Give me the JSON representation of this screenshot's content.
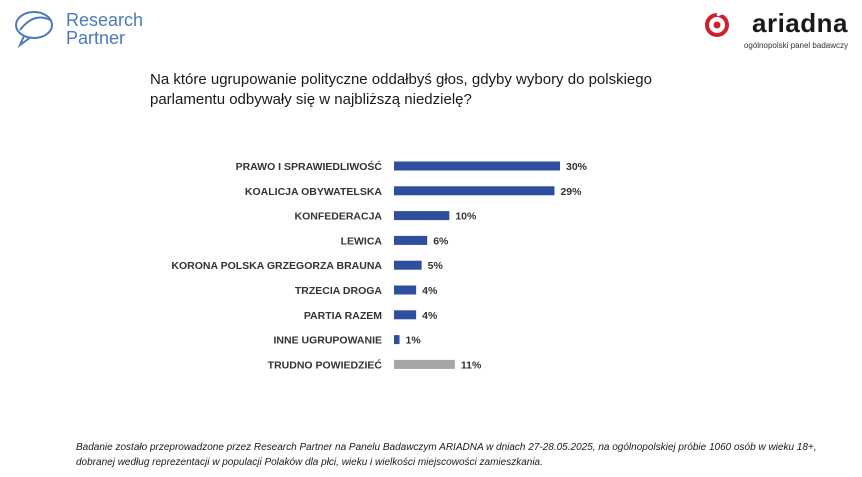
{
  "header": {
    "left_logo": {
      "text": "Research Partner",
      "line1": "Research",
      "line2": "Partner",
      "color": "#4a7bb7"
    },
    "right_logo": {
      "name": "ariadna",
      "tagline": "ogólnopolski panel badawczy",
      "accent": "#d0202e"
    }
  },
  "question": "Na które ugrupowanie polityczne oddałbyś głos, gdyby wybory do polskiego parlamentu odbywały się w najbliższą niedzielę?",
  "chart_data": {
    "type": "bar",
    "orientation": "horizontal",
    "categories": [
      "PRAWO I SPRAWIEDLIWOŚĆ",
      "KOALICJA OBYWATELSKA",
      "KONFEDERACJA",
      "LEWICA",
      "KORONA POLSKA GRZEGORZA BRAUNA",
      "TRZECIA DROGA",
      "PARTIA RAZEM",
      "INNE UGRUPOWANIE",
      "TRUDNO POWIEDZIEĆ"
    ],
    "values": [
      30,
      29,
      10,
      6,
      5,
      4,
      4,
      1,
      11
    ],
    "value_labels": [
      "30%",
      "29%",
      "10%",
      "6%",
      "5%",
      "4%",
      "4%",
      "1%",
      "11%"
    ],
    "unit": "%",
    "colors": [
      "#2e4f9e",
      "#2e4f9e",
      "#2e4f9e",
      "#2e4f9e",
      "#2e4f9e",
      "#2e4f9e",
      "#2e4f9e",
      "#2e4f9e",
      "#a6a6a6"
    ],
    "xlim": [
      0,
      30
    ],
    "grid": false,
    "legend": "none"
  },
  "footnote": "Badanie zostało przeprowadzone przez Research Partner na Panelu Badawczym ARIADNA w dniach 27-28.05.2025, na ogólnopolskiej próbie 1060 osób w wieku 18+, dobranej według reprezentacji w populacji Polaków dla płci, wieku i wielkości miejscowości zamieszkania."
}
